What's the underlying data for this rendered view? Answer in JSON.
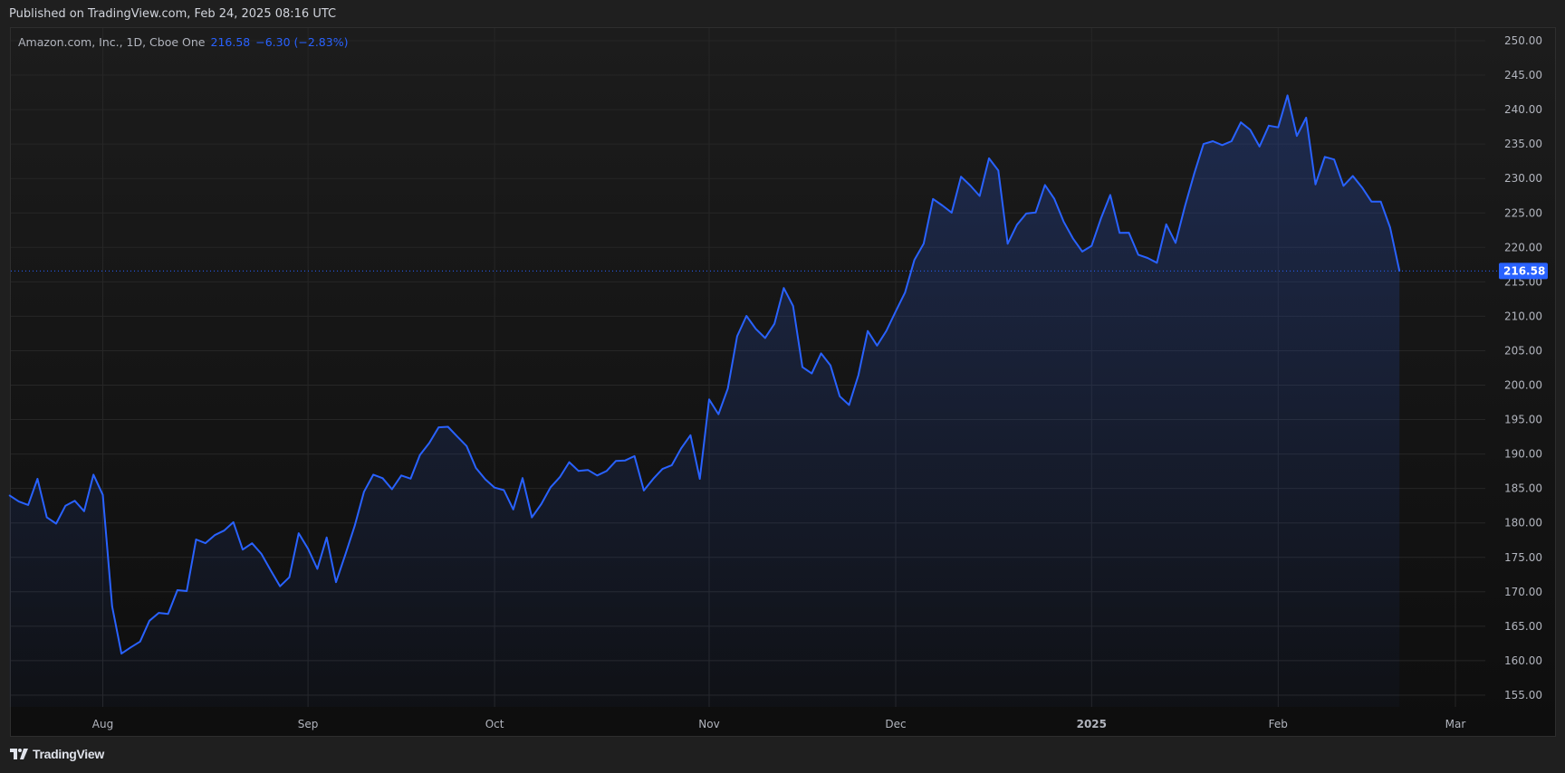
{
  "header": {
    "published": "Published on TradingView.com, Feb 24, 2025 08:16 UTC"
  },
  "legend": {
    "symbol": "Amazon.com, Inc., 1D, Cboe One",
    "last": "216.58",
    "change": "−6.30 (−2.83%)"
  },
  "footer": {
    "brand": "TradingView",
    "logo_icon": "tradingview-logo-icon"
  },
  "colors": {
    "line": "#2962ff",
    "background": "#161616",
    "badge": "#2962ff"
  },
  "chart_data": {
    "type": "area",
    "title": "",
    "xlabel": "",
    "ylabel": "",
    "ylim": [
      152,
      252
    ],
    "grid": true,
    "y_ticks": [
      "250.00",
      "245.00",
      "240.00",
      "235.00",
      "230.00",
      "225.00",
      "220.00",
      "215.00",
      "210.00",
      "205.00",
      "200.00",
      "195.00",
      "190.00",
      "185.00",
      "180.00",
      "175.00",
      "170.00",
      "165.00",
      "160.00",
      "155.00"
    ],
    "x_ticks": [
      {
        "label": "Aug",
        "date": "2024-08-01"
      },
      {
        "label": "Sep",
        "date": "2024-09-03"
      },
      {
        "label": "Oct",
        "date": "2024-10-01"
      },
      {
        "label": "Nov",
        "date": "2024-11-01"
      },
      {
        "label": "Dec",
        "date": "2024-12-02"
      },
      {
        "label": "2025",
        "date": "2025-01-02",
        "bold": true
      },
      {
        "label": "Feb",
        "date": "2025-02-03"
      },
      {
        "label": "Mar",
        "date": "2025-03-03"
      }
    ],
    "last_price_label": "216.58",
    "x": [
      "2024-07-18",
      "2024-07-19",
      "2024-07-22",
      "2024-07-23",
      "2024-07-24",
      "2024-07-25",
      "2024-07-26",
      "2024-07-29",
      "2024-07-30",
      "2024-07-31",
      "2024-08-01",
      "2024-08-02",
      "2024-08-05",
      "2024-08-06",
      "2024-08-07",
      "2024-08-08",
      "2024-08-09",
      "2024-08-12",
      "2024-08-13",
      "2024-08-14",
      "2024-08-15",
      "2024-08-16",
      "2024-08-19",
      "2024-08-20",
      "2024-08-21",
      "2024-08-22",
      "2024-08-23",
      "2024-08-26",
      "2024-08-27",
      "2024-08-28",
      "2024-08-29",
      "2024-08-30",
      "2024-09-03",
      "2024-09-04",
      "2024-09-05",
      "2024-09-06",
      "2024-09-09",
      "2024-09-10",
      "2024-09-11",
      "2024-09-12",
      "2024-09-13",
      "2024-09-16",
      "2024-09-17",
      "2024-09-18",
      "2024-09-19",
      "2024-09-20",
      "2024-09-23",
      "2024-09-24",
      "2024-09-25",
      "2024-09-26",
      "2024-09-27",
      "2024-09-30",
      "2024-10-01",
      "2024-10-02",
      "2024-10-03",
      "2024-10-04",
      "2024-10-07",
      "2024-10-08",
      "2024-10-09",
      "2024-10-10",
      "2024-10-11",
      "2024-10-14",
      "2024-10-15",
      "2024-10-16",
      "2024-10-17",
      "2024-10-18",
      "2024-10-21",
      "2024-10-22",
      "2024-10-23",
      "2024-10-24",
      "2024-10-25",
      "2024-10-28",
      "2024-10-29",
      "2024-10-30",
      "2024-10-31",
      "2024-11-01",
      "2024-11-04",
      "2024-11-05",
      "2024-11-06",
      "2024-11-07",
      "2024-11-08",
      "2024-11-11",
      "2024-11-12",
      "2024-11-13",
      "2024-11-14",
      "2024-11-15",
      "2024-11-18",
      "2024-11-19",
      "2024-11-20",
      "2024-11-21",
      "2024-11-22",
      "2024-11-25",
      "2024-11-26",
      "2024-11-27",
      "2024-11-29",
      "2024-12-02",
      "2024-12-03",
      "2024-12-04",
      "2024-12-05",
      "2024-12-06",
      "2024-12-09",
      "2024-12-10",
      "2024-12-11",
      "2024-12-12",
      "2024-12-13",
      "2024-12-16",
      "2024-12-17",
      "2024-12-18",
      "2024-12-19",
      "2024-12-20",
      "2024-12-23",
      "2024-12-24",
      "2024-12-26",
      "2024-12-27",
      "2024-12-30",
      "2024-12-31",
      "2025-01-02",
      "2025-01-03",
      "2025-01-06",
      "2025-01-07",
      "2025-01-08",
      "2025-01-10",
      "2025-01-13",
      "2025-01-14",
      "2025-01-15",
      "2025-01-16",
      "2025-01-17",
      "2025-01-21",
      "2025-01-22",
      "2025-01-23",
      "2025-01-24",
      "2025-01-27",
      "2025-01-28",
      "2025-01-29",
      "2025-01-30",
      "2025-01-31",
      "2025-02-03",
      "2025-02-04",
      "2025-02-05",
      "2025-02-06",
      "2025-02-07",
      "2025-02-10",
      "2025-02-11",
      "2025-02-12",
      "2025-02-13",
      "2025-02-14",
      "2025-02-18",
      "2025-02-19",
      "2025-02-20",
      "2025-02-21"
    ],
    "values": [
      184.0,
      183.1,
      182.6,
      186.4,
      180.8,
      179.9,
      182.5,
      183.2,
      181.7,
      187.0,
      184.07,
      167.9,
      161.02,
      161.93,
      162.77,
      165.8,
      166.94,
      166.8,
      170.23,
      170.1,
      177.59,
      177.06,
      178.22,
      178.88,
      180.11,
      176.13,
      177.04,
      175.5,
      173.12,
      170.8,
      172.12,
      178.5,
      176.25,
      173.33,
      177.89,
      171.39,
      175.4,
      179.55,
      184.52,
      187.0,
      186.49,
      184.89,
      186.88,
      186.43,
      189.87,
      191.6,
      193.88,
      193.96,
      192.53,
      191.16,
      187.97,
      186.33,
      185.13,
      184.76,
      181.96,
      186.51,
      180.8,
      182.72,
      185.17,
      186.65,
      188.82,
      187.54,
      187.69,
      186.89,
      187.53,
      188.99,
      189.07,
      189.7,
      184.71,
      186.38,
      187.83,
      188.39,
      190.83,
      192.73,
      186.4,
      197.93,
      195.78,
      199.5,
      207.09,
      210.05,
      208.18,
      206.84,
      208.91,
      214.1,
      211.48,
      202.61,
      201.7,
      204.61,
      202.88,
      198.38,
      197.12,
      201.45,
      207.86,
      205.74,
      207.89,
      210.71,
      213.44,
      218.16,
      220.55,
      227.03,
      226.09,
      225.04,
      230.26,
      228.97,
      227.46,
      232.93,
      231.15,
      220.52,
      223.29,
      224.92,
      225.06,
      229.05,
      227.05,
      223.75,
      221.3,
      219.39,
      220.22,
      224.19,
      227.61,
      222.11,
      222.13,
      218.94,
      218.46,
      217.76,
      223.35,
      220.66,
      225.94,
      230.71,
      235.01,
      235.42,
      234.85,
      235.42,
      238.15,
      237.07,
      234.64,
      237.68,
      237.42,
      242.06,
      236.17,
      238.83,
      229.15,
      233.14,
      232.76,
      228.93,
      230.37,
      228.68,
      226.65,
      226.63,
      222.88,
      216.58
    ]
  }
}
